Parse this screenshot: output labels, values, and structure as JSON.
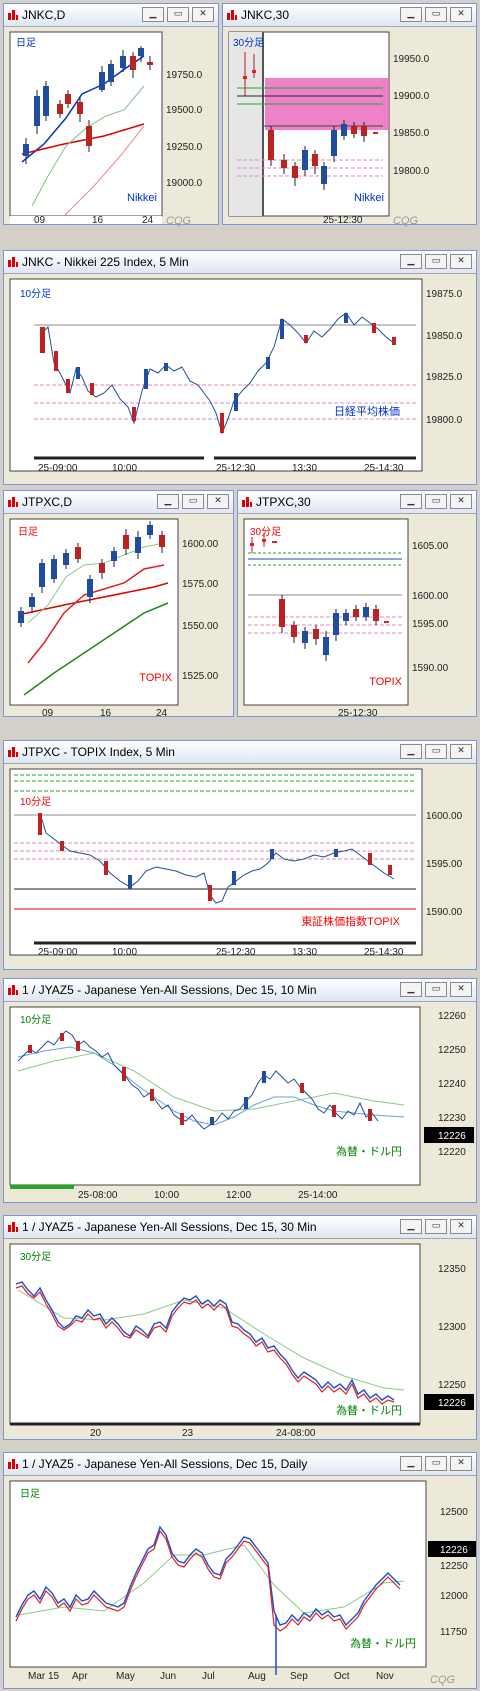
{
  "colors": {
    "accent_blue": "#0033cc",
    "accent_red": "#ff0000",
    "accent_green": "#008000",
    "magenta_zone": "#ec6bc0"
  },
  "icons": {
    "window_icon": "chart-window-icon",
    "minimize": "minimize-icon",
    "maximize": "maximize-icon",
    "close": "close-icon"
  },
  "windows": [
    {
      "title": "JNKC,D",
      "chart_label": "日足",
      "label_color": "#0033cc",
      "watermark": "Nikkei",
      "watermark_color": "#0033cc",
      "y_ticks": [
        "19750.0",
        "19500.0",
        "19250.0",
        "19000.0"
      ],
      "x_ticks": [
        "09",
        "16",
        "24"
      ],
      "logo": "CQG"
    },
    {
      "title": "JNKC,30",
      "chart_label": "30分足",
      "label_color": "#0033cc",
      "watermark": "Nikkei",
      "watermark_color": "#0033cc",
      "y_ticks": [
        "19950.0",
        "19900.0",
        "19850.0",
        "19800.0"
      ],
      "x_ticks": [
        "25-12:30"
      ],
      "logo": "CQG"
    },
    {
      "title": "JNKC - Nikkei 225 Index, 5 Min",
      "chart_label": "10分足",
      "label_color": "#0033cc",
      "watermark": "日経平均株価",
      "watermark_color": "#0033cc",
      "y_ticks": [
        "19875.0",
        "19850.0",
        "19825.0",
        "19800.0"
      ],
      "x_ticks": [
        "25-09:00",
        "10:00",
        "25-12:30",
        "13:30",
        "25-14:30"
      ]
    },
    {
      "title": "JTPXC,D",
      "chart_label": "日足",
      "label_color": "#ff0000",
      "watermark": "TOPIX",
      "watermark_color": "#ff0000",
      "y_ticks": [
        "1600.00",
        "1575.00",
        "1550.00",
        "1525.00"
      ],
      "x_ticks": [
        "09",
        "16",
        "24"
      ]
    },
    {
      "title": "JTPXC,30",
      "chart_label": "30分足",
      "label_color": "#ff0000",
      "watermark": "TOPIX",
      "watermark_color": "#ff0000",
      "y_ticks": [
        "1605.00",
        "1600.00",
        "1595.00",
        "1590.00"
      ],
      "x_ticks": [
        "25-12:30"
      ]
    },
    {
      "title": "JTPXC - TOPIX Index, 5 Min",
      "chart_label": "10分足",
      "label_color": "#ff0000",
      "watermark": "東証株価指数TOPIX",
      "watermark_color": "#ff0000",
      "y_ticks": [
        "1600.00",
        "1595.00",
        "1590.00"
      ],
      "x_ticks": [
        "25-09:00",
        "10:00",
        "25-12:30",
        "13:30",
        "25-14:30"
      ]
    },
    {
      "title": "1 / JYAZ5 - Japanese Yen-All Sessions, Dec 15, 10 Min",
      "chart_label": "10分足",
      "label_color": "#008000",
      "watermark": "為替・ドル円",
      "watermark_color": "#008000",
      "y_ticks": [
        "12260",
        "12250",
        "12240",
        "12230",
        "12220"
      ],
      "last_price": "12226",
      "x_ticks": [
        "25-08:00",
        "10:00",
        "12:00",
        "25-14:00"
      ]
    },
    {
      "title": "1 / JYAZ5 - Japanese Yen-All Sessions, Dec 15, 30 Min",
      "chart_label": "30分足",
      "label_color": "#008000",
      "watermark": "為替・ドル円",
      "watermark_color": "#008000",
      "y_ticks": [
        "12350",
        "12300",
        "12250"
      ],
      "last_price": "12226",
      "x_ticks": [
        "20",
        "23",
        "24-08:00"
      ]
    },
    {
      "title": "1 / JYAZ5 - Japanese Yen-All Sessions, Dec 15, Daily",
      "chart_label": "日足",
      "label_color": "#008000",
      "watermark": "為替・ドル円",
      "watermark_color": "#008000",
      "y_ticks": [
        "12500",
        "12250",
        "12000",
        "11750"
      ],
      "last_price": "12226",
      "x_ticks": [
        "Mar 15",
        "Apr",
        "May",
        "Jun",
        "Jul",
        "Aug",
        "Sep",
        "Oct",
        "Nov"
      ],
      "logo": "CQG"
    }
  ]
}
